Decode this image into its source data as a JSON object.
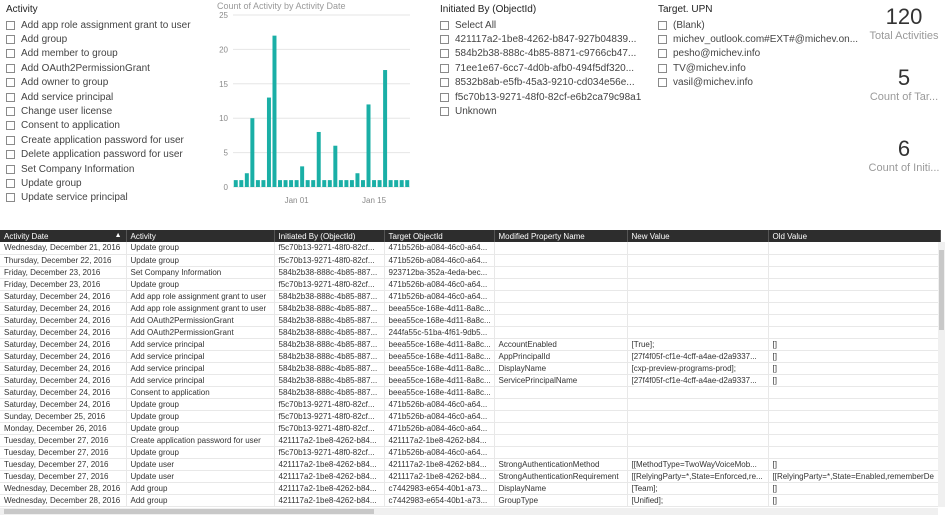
{
  "activity_slicer": {
    "title": "Activity",
    "items": [
      "Add app role assignment grant to user",
      "Add group",
      "Add member to group",
      "Add OAuth2PermissionGrant",
      "Add owner to group",
      "Add service principal",
      "Change user license",
      "Consent to application",
      "Create application password for user",
      "Delete application password for user",
      "Set Company Information",
      "Update group",
      "Update service principal"
    ]
  },
  "initiated_slicer": {
    "title": "Initiated By (ObjectId)",
    "items": [
      "Select All",
      "421117a2-1be8-4262-b847-927b04839...",
      "584b2b38-888c-4b85-8871-c9766cb47...",
      "71ee1e67-6cc7-4d0b-afb0-494f5df320...",
      "8532b8ab-e5fb-45a3-9210-cd034e56e...",
      "f5c70b13-9271-48f0-82cf-e6b2ca79c98a1",
      "Unknown"
    ]
  },
  "target_slicer": {
    "title": "Target. UPN",
    "items": [
      "(Blank)",
      "michev_outlook.com#EXT#@michev.on...",
      "pesho@michev.info",
      "TV@michev.info",
      "vasil@michev.info"
    ]
  },
  "chart_data": {
    "type": "bar",
    "title": "Count of Activity by Activity Date",
    "xlabel": "",
    "ylabel": "",
    "ylim": [
      0,
      25
    ],
    "yticks": [
      "0",
      "5",
      "10",
      "15",
      "20",
      "25"
    ],
    "xtick_labels": [
      "Jan 01",
      "Jan 15"
    ],
    "xtick_index": [
      11,
      25
    ],
    "categories": [
      "1",
      "2",
      "3",
      "4",
      "5",
      "6",
      "7",
      "8",
      "9",
      "10",
      "11",
      "12",
      "13",
      "14",
      "15",
      "16",
      "17",
      "18",
      "19",
      "20",
      "21",
      "22",
      "23",
      "24",
      "25",
      "26",
      "27",
      "28",
      "29",
      "30",
      "31",
      "32"
    ],
    "values": [
      1,
      1,
      2,
      10,
      1,
      1,
      13,
      22,
      1,
      1,
      1,
      1,
      3,
      1,
      1,
      8,
      1,
      1,
      6,
      1,
      1,
      1,
      2,
      1,
      12,
      1,
      1,
      17,
      1,
      1,
      1,
      1
    ],
    "bar_color": "#1aafa6",
    "grid": true
  },
  "cards": {
    "total": {
      "value": "120",
      "label": "Total Activities"
    },
    "target": {
      "value": "5",
      "label": "Count of Tar..."
    },
    "initiated": {
      "value": "6",
      "label": "Count of Initi..."
    }
  },
  "table": {
    "columns": [
      "Activity Date",
      "Activity",
      "Initiated By (ObjectId)",
      "Target ObjectId",
      "Modified Property Name",
      "New Value",
      "Old Value"
    ],
    "rows": [
      [
        "Wednesday, December 21, 2016",
        "Update group",
        "f5c70b13-9271-48f0-82cf...",
        "471b526b-a084-46c0-a64...",
        "",
        "",
        ""
      ],
      [
        "Thursday, December 22, 2016",
        "Update group",
        "f5c70b13-9271-48f0-82cf...",
        "471b526b-a084-46c0-a64...",
        "",
        "",
        ""
      ],
      [
        "Friday, December 23, 2016",
        "Set Company Information",
        "584b2b38-888c-4b85-887...",
        "923712ba-352a-4eda-bec...",
        "",
        "",
        ""
      ],
      [
        "Friday, December 23, 2016",
        "Update group",
        "f5c70b13-9271-48f0-82cf...",
        "471b526b-a084-46c0-a64...",
        "",
        "",
        ""
      ],
      [
        "Saturday, December 24, 2016",
        "Add app role assignment grant to user",
        "584b2b38-888c-4b85-887...",
        "471b526b-a084-46c0-a64...",
        "",
        "",
        ""
      ],
      [
        "Saturday, December 24, 2016",
        "Add app role assignment grant to user",
        "584b2b38-888c-4b85-887...",
        "beea55ce-168e-4d11-8a8c...",
        "",
        "",
        ""
      ],
      [
        "Saturday, December 24, 2016",
        "Add OAuth2PermissionGrant",
        "584b2b38-888c-4b85-887...",
        "beea55ce-168e-4d11-8a8c...",
        "",
        "",
        ""
      ],
      [
        "Saturday, December 24, 2016",
        "Add OAuth2PermissionGrant",
        "584b2b38-888c-4b85-887...",
        "244fa55c-51ba-4f61-9db5...",
        "",
        "",
        ""
      ],
      [
        "Saturday, December 24, 2016",
        "Add service principal",
        "584b2b38-888c-4b85-887...",
        "beea55ce-168e-4d11-8a8c...",
        "AccountEnabled",
        "[True];",
        "[]"
      ],
      [
        "Saturday, December 24, 2016",
        "Add service principal",
        "584b2b38-888c-4b85-887...",
        "beea55ce-168e-4d11-8a8c...",
        "AppPrincipalId",
        "[27f4f05f-cf1e-4cff-a4ae-d2a9337...",
        "[]"
      ],
      [
        "Saturday, December 24, 2016",
        "Add service principal",
        "584b2b38-888c-4b85-887...",
        "beea55ce-168e-4d11-8a8c...",
        "DisplayName",
        "[cxp-preview-programs-prod];",
        "[]"
      ],
      [
        "Saturday, December 24, 2016",
        "Add service principal",
        "584b2b38-888c-4b85-887...",
        "beea55ce-168e-4d11-8a8c...",
        "ServicePrincipalName",
        "[27f4f05f-cf1e-4cff-a4ae-d2a9337...",
        "[]"
      ],
      [
        "Saturday, December 24, 2016",
        "Consent to application",
        "584b2b38-888c-4b85-887...",
        "beea55ce-168e-4d11-8a8c...",
        "",
        "",
        ""
      ],
      [
        "Saturday, December 24, 2016",
        "Update group",
        "f5c70b13-9271-48f0-82cf...",
        "471b526b-a084-46c0-a64...",
        "",
        "",
        ""
      ],
      [
        "Sunday, December 25, 2016",
        "Update group",
        "f5c70b13-9271-48f0-82cf...",
        "471b526b-a084-46c0-a64...",
        "",
        "",
        ""
      ],
      [
        "Monday, December 26, 2016",
        "Update group",
        "f5c70b13-9271-48f0-82cf...",
        "471b526b-a084-46c0-a64...",
        "",
        "",
        ""
      ],
      [
        "Tuesday, December 27, 2016",
        "Create application password for user",
        "421117a2-1be8-4262-b84...",
        "421117a2-1be8-4262-b84...",
        "",
        "",
        ""
      ],
      [
        "Tuesday, December 27, 2016",
        "Update group",
        "f5c70b13-9271-48f0-82cf...",
        "471b526b-a084-46c0-a64...",
        "",
        "",
        ""
      ],
      [
        "Tuesday, December 27, 2016",
        "Update user",
        "421117a2-1be8-4262-b84...",
        "421117a2-1be8-4262-b84...",
        "StrongAuthenticationMethod",
        "[[MethodType=TwoWayVoiceMob...",
        "[]"
      ],
      [
        "Tuesday, December 27, 2016",
        "Update user",
        "421117a2-1be8-4262-b84...",
        "421117a2-1be8-4262-b84...",
        "StrongAuthenticationRequirement",
        "[[RelyingParty=*,State=Enforced,re...",
        "[[RelyingParty=*,State=Enabled,rememberDe"
      ],
      [
        "Wednesday, December 28, 2016",
        "Add group",
        "421117a2-1be8-4262-b84...",
        "c7442983-e654-40b1-a73...",
        "DisplayName",
        "[Team];",
        "[]"
      ],
      [
        "Wednesday, December 28, 2016",
        "Add group",
        "421117a2-1be8-4262-b84...",
        "c7442983-e654-40b1-a73...",
        "GroupType",
        "[Unified];",
        "[]"
      ]
    ]
  }
}
